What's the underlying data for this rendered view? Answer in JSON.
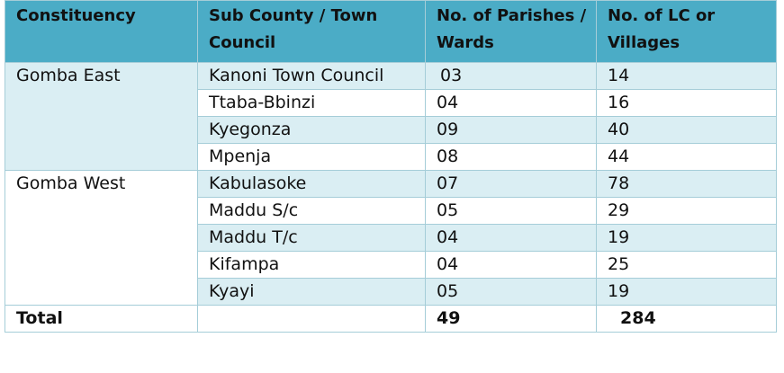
{
  "table": {
    "header": [
      "Constituency",
      "Sub County / Town Council",
      "No. of Parishes / Wards",
      "No. of LC  or Villages"
    ],
    "groups": [
      {
        "constituency": "Gomba East",
        "rows": [
          [
            "Kanoni Town Council",
            "03",
            "14"
          ],
          [
            "Ttaba-Bbinzi",
            "04",
            "16"
          ],
          [
            "Kyegonza",
            "09",
            "40"
          ],
          [
            "Mpenja",
            "08",
            "44"
          ]
        ]
      },
      {
        "constituency": "Gomba West",
        "rows": [
          [
            "Kabulasoke",
            "07",
            "78"
          ],
          [
            "Maddu S/c",
            "05",
            "29"
          ],
          [
            "Maddu T/c",
            "04",
            "19"
          ],
          [
            "Kifampa",
            "04",
            "25"
          ],
          [
            "Kyayi",
            "05",
            "19"
          ]
        ]
      }
    ],
    "total": {
      "label": "Total",
      "parishes": "49",
      "villages": "284"
    }
  }
}
